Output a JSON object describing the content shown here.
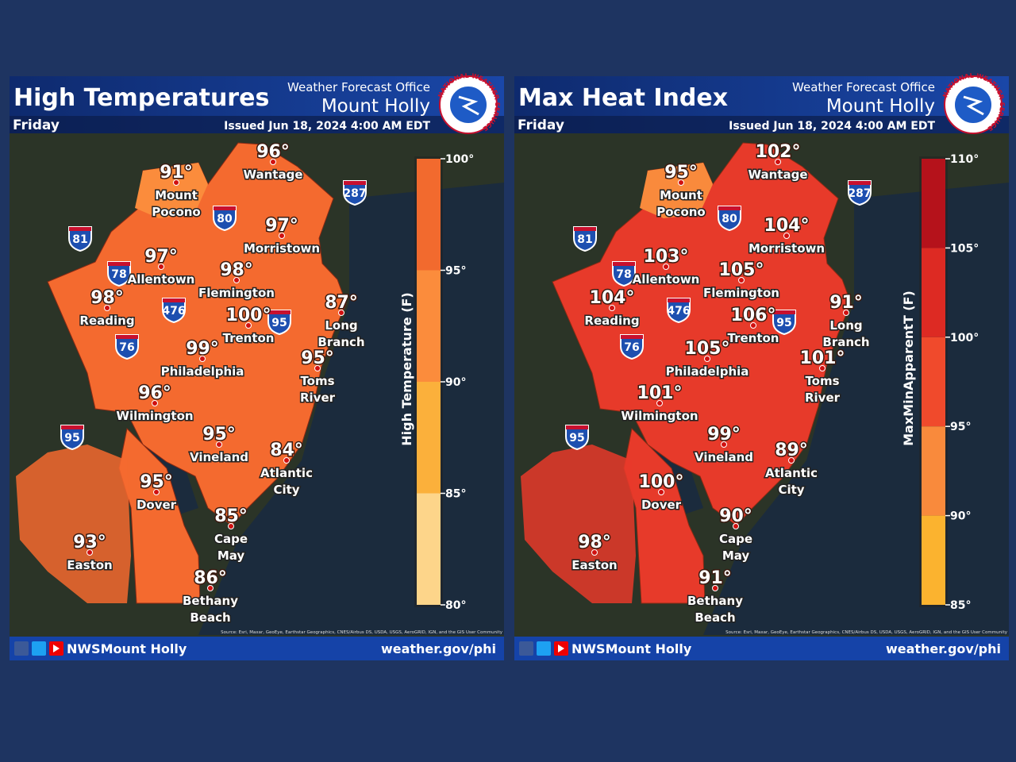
{
  "panels": [
    {
      "title": "High Temperatures",
      "day": "Friday",
      "office": "Weather Forecast Office",
      "location": "Mount Holly",
      "issued": "Issued Jun 18, 2024 4:00 AM EDT",
      "logo_text": "NATIONAL WEATHER SERVICE",
      "cities": [
        {
          "temp": "96°",
          "name": [
            "Wantage"
          ]
        },
        {
          "temp": "91°",
          "name": [
            "Mount",
            "Pocono"
          ]
        },
        {
          "temp": "97°",
          "name": [
            "Morristown"
          ]
        },
        {
          "temp": "97°",
          "name": [
            "Allentown"
          ]
        },
        {
          "temp": "98°",
          "name": [
            "Flemington"
          ]
        },
        {
          "temp": "98°",
          "name": [
            "Reading"
          ]
        },
        {
          "temp": "87°",
          "name": [
            "Long",
            "Branch"
          ]
        },
        {
          "temp": "100°",
          "name": [
            "Trenton"
          ]
        },
        {
          "temp": "99°",
          "name": [
            "Philadelphia"
          ]
        },
        {
          "temp": "95°",
          "name": [
            "Toms",
            "River"
          ]
        },
        {
          "temp": "96°",
          "name": [
            "Wilmington"
          ]
        },
        {
          "temp": "95°",
          "name": [
            "Vineland"
          ]
        },
        {
          "temp": "84°",
          "name": [
            "Atlantic",
            "City"
          ]
        },
        {
          "temp": "95°",
          "name": [
            "Dover"
          ]
        },
        {
          "temp": "85°",
          "name": [
            "Cape",
            "May"
          ]
        },
        {
          "temp": "93°",
          "name": [
            "Easton"
          ]
        },
        {
          "temp": "86°",
          "name": [
            "Bethany",
            "Beach"
          ]
        }
      ],
      "shields": [
        "81",
        "80",
        "287",
        "78",
        "476",
        "95",
        "76",
        "95"
      ],
      "legend": {
        "label": "High Temperature (F)",
        "ticks": [
          "100°",
          "95°",
          "90°",
          "85°",
          "80°"
        ],
        "colors": [
          "#f26a2e",
          "#fb8c3c",
          "#fbb03b",
          "#fdd58a"
        ]
      },
      "region_color": "#f46a2f",
      "source": "Source: Esri, Maxar, GeoEye, Earthstar Geographics, CNES/Airbus DS, USDA, USGS, AeroGRID, IGN, and the GIS User Community",
      "handle": "NWSMount Holly",
      "url": "weather.gov/phi"
    },
    {
      "title": "Max Heat Index",
      "day": "Friday",
      "office": "Weather Forecast Office",
      "location": "Mount Holly",
      "issued": "Issued Jun 18, 2024 4:00 AM EDT",
      "logo_text": "NATIONAL WEATHER SERVICE",
      "cities": [
        {
          "temp": "102°",
          "name": [
            "Wantage"
          ]
        },
        {
          "temp": "95°",
          "name": [
            "Mount",
            "Pocono"
          ]
        },
        {
          "temp": "104°",
          "name": [
            "Morristown"
          ]
        },
        {
          "temp": "103°",
          "name": [
            "Allentown"
          ]
        },
        {
          "temp": "105°",
          "name": [
            "Flemington"
          ]
        },
        {
          "temp": "104°",
          "name": [
            "Reading"
          ]
        },
        {
          "temp": "91°",
          "name": [
            "Long",
            "Branch"
          ]
        },
        {
          "temp": "106°",
          "name": [
            "Trenton"
          ]
        },
        {
          "temp": "105°",
          "name": [
            "Philadelphia"
          ]
        },
        {
          "temp": "101°",
          "name": [
            "Toms",
            "River"
          ]
        },
        {
          "temp": "101°",
          "name": [
            "Wilmington"
          ]
        },
        {
          "temp": "99°",
          "name": [
            "Vineland"
          ]
        },
        {
          "temp": "89°",
          "name": [
            "Atlantic",
            "City"
          ]
        },
        {
          "temp": "100°",
          "name": [
            "Dover"
          ]
        },
        {
          "temp": "90°",
          "name": [
            "Cape",
            "May"
          ]
        },
        {
          "temp": "98°",
          "name": [
            "Easton"
          ]
        },
        {
          "temp": "91°",
          "name": [
            "Bethany",
            "Beach"
          ]
        }
      ],
      "shields": [
        "81",
        "80",
        "287",
        "78",
        "476",
        "95",
        "76",
        "95"
      ],
      "legend": {
        "label": "MaxMinApparentT (F)",
        "ticks": [
          "110°",
          "105°",
          "100°",
          "95°",
          "90°",
          "85°"
        ],
        "colors": [
          "#b5121b",
          "#dd2a23",
          "#f04a2c",
          "#f98a3c",
          "#fbb32f"
        ]
      },
      "region_color": "#e73a2a",
      "source": "Source: Esri, Maxar, GeoEye, Earthstar Geographics, CNES/Airbus DS, USDA, USGS, AeroGRID, IGN, and the GIS User Community",
      "handle": "NWSMount Holly",
      "url": "weather.gov/phi"
    }
  ]
}
